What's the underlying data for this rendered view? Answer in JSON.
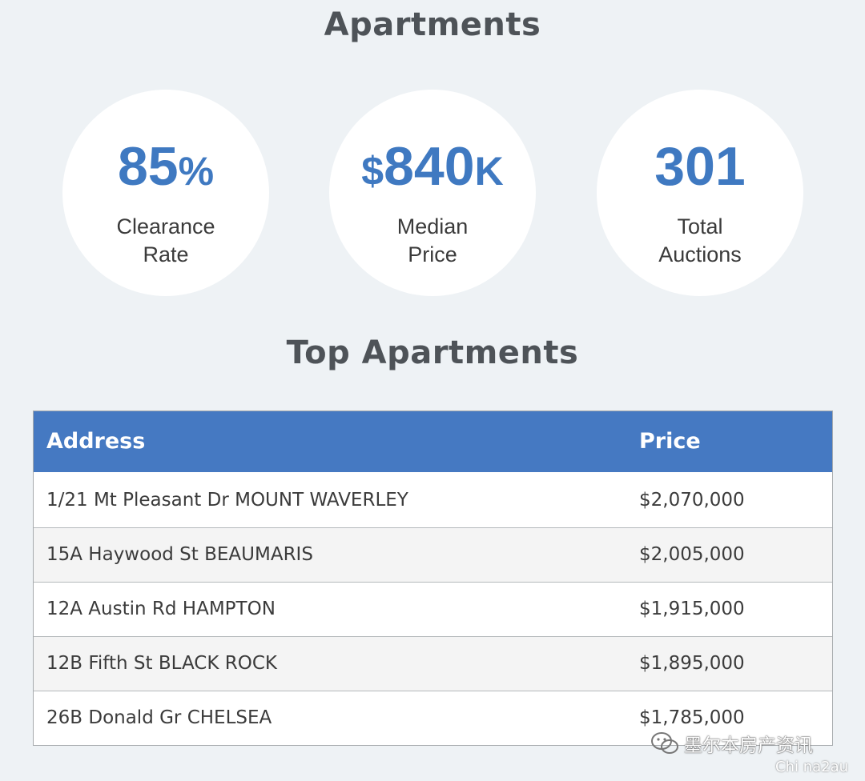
{
  "title": "Apartments",
  "stats": [
    {
      "value": "85",
      "unit_suffix": "%",
      "label_line1": "Clearance",
      "label_line2": "Rate"
    },
    {
      "unit_prefix": "$",
      "value": "840",
      "unit_suffix": "K",
      "label_line1": "Median",
      "label_line2": "Price"
    },
    {
      "value": "301",
      "label_line1": "Total",
      "label_line2": "Auctions"
    }
  ],
  "section_title": "Top Apartments",
  "table": {
    "headers": {
      "address": "Address",
      "price": "Price"
    },
    "rows": [
      {
        "address": "1/21 Mt Pleasant Dr MOUNT WAVERLEY",
        "price": "$2,070,000"
      },
      {
        "address": "15A Haywood St BEAUMARIS",
        "price": "$2,005,000"
      },
      {
        "address": "12A Austin Rd HAMPTON",
        "price": "$1,915,000"
      },
      {
        "address": "12B Fifth St BLACK ROCK",
        "price": "$1,895,000"
      },
      {
        "address": "26B Donald Gr CHELSEA",
        "price": "$1,785,000"
      }
    ]
  },
  "watermark": {
    "text": "墨尔本房产资讯",
    "sub": "Chi na2au",
    "icon": "wechat-icon"
  },
  "colors": {
    "accent": "#3f79c1",
    "header_bg": "#4579c2",
    "page_bg": "#eef2f5",
    "heading_text": "#4e5358"
  }
}
